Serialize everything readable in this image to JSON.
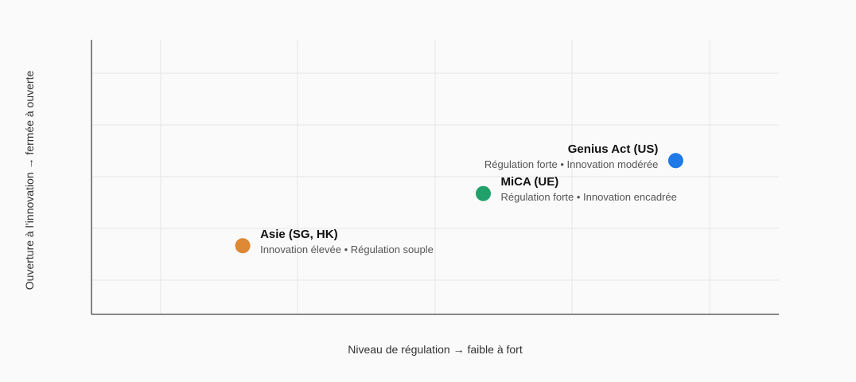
{
  "chart_data": {
    "type": "scatter",
    "title": "",
    "xlabel": "Niveau de régulation → faible à fort",
    "ylabel": "Ouverture à l’innovation → fermée à ouverte",
    "xlim": [
      0,
      100
    ],
    "ylim": [
      0,
      100
    ],
    "grid": true,
    "legend": "none",
    "points": [
      {
        "label": "Asie (SG, HK)",
        "description": "Innovation élevée • Régulation souple",
        "x": 22,
        "y": 25,
        "color": "#dd8833",
        "label_side": "right"
      },
      {
        "label": "MiCA (UE)",
        "description": "Régulation forte • Innovation encadrée",
        "x": 57,
        "y": 44,
        "color": "#22a06b",
        "label_side": "right"
      },
      {
        "label": "Genius Act (US)",
        "description": "Régulation forte • Innovation modérée",
        "x": 85,
        "y": 56,
        "color": "#1e78e6",
        "label_side": "left"
      }
    ]
  }
}
